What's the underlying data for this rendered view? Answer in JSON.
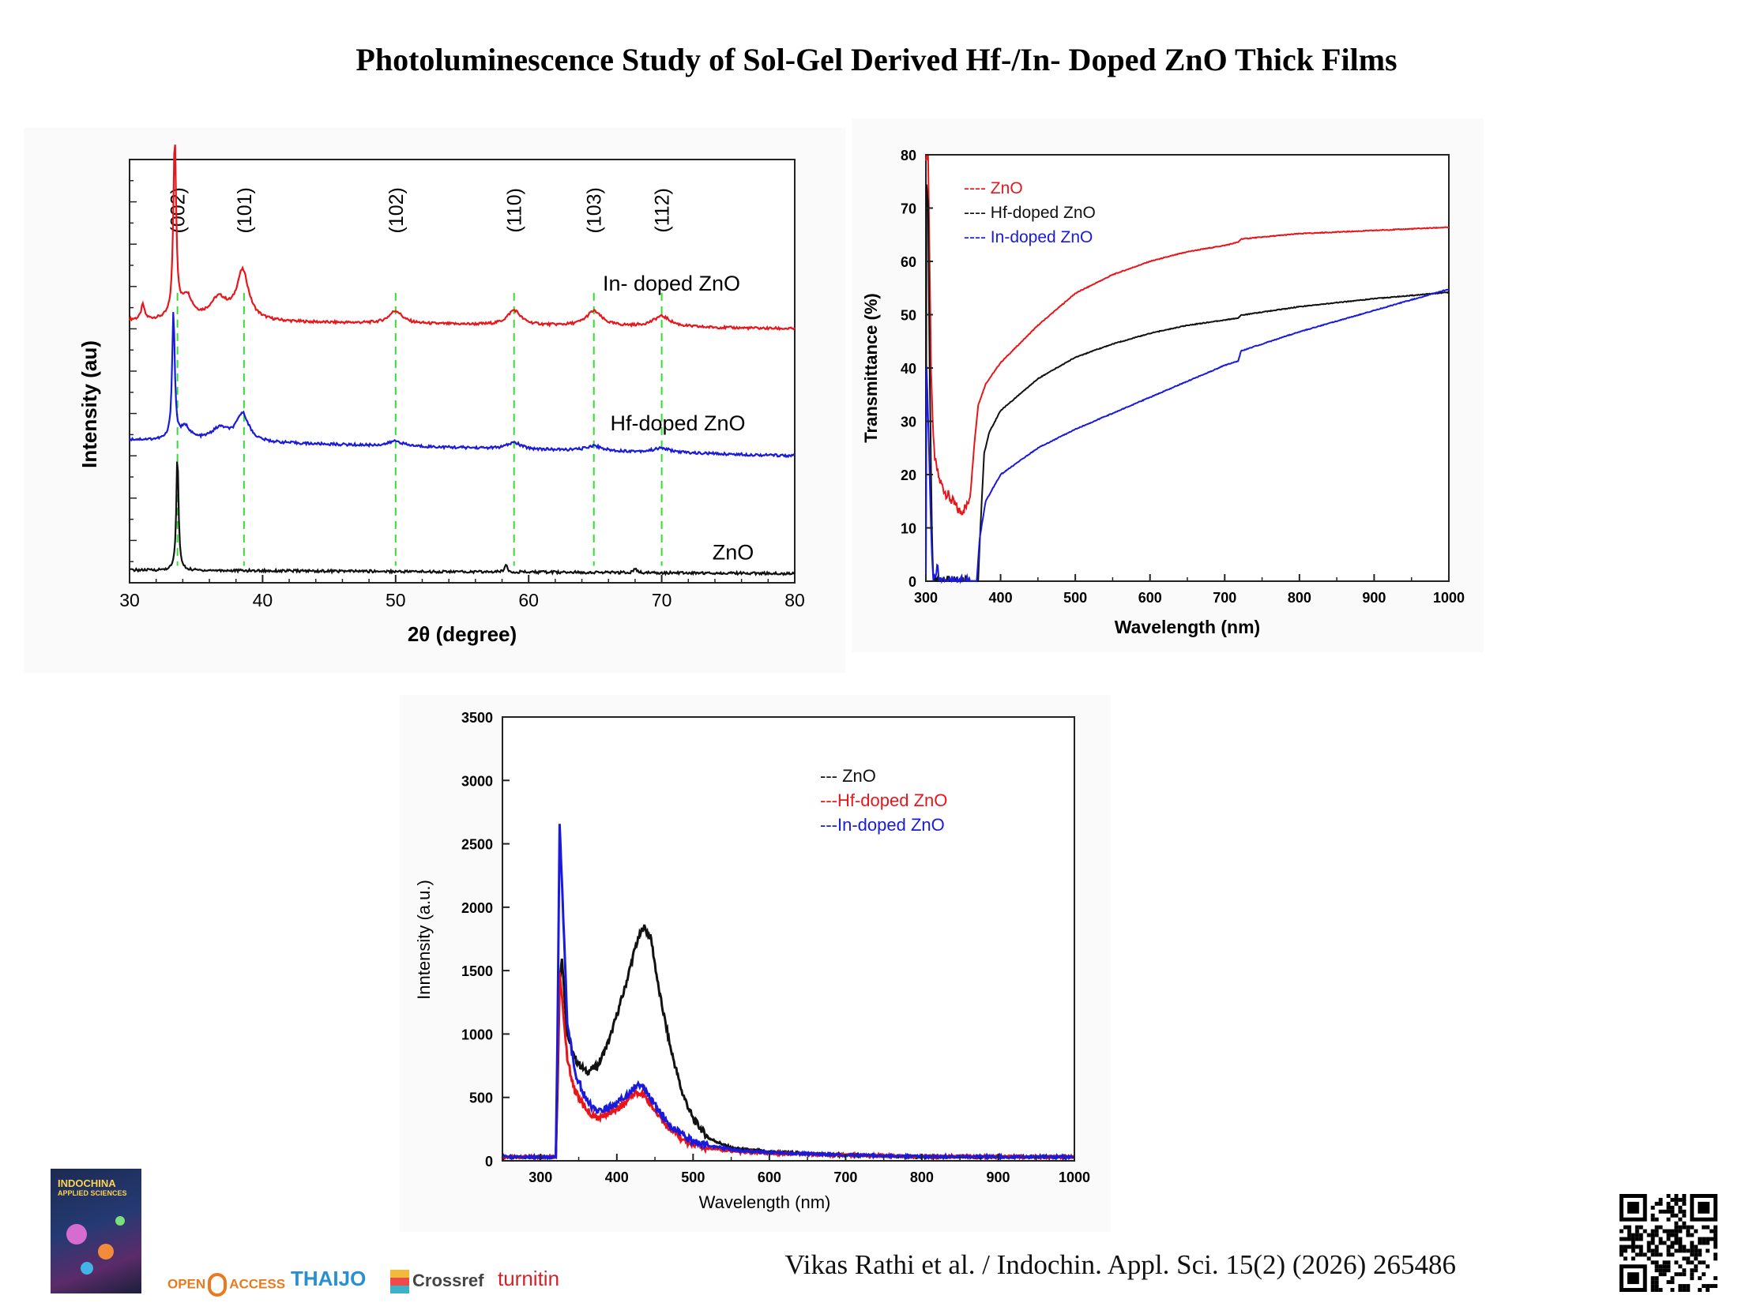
{
  "page": {
    "title": "Photoluminescence Study of Sol-Gel Derived Hf-/In- Doped ZnO Thick Films",
    "citation": "Vikas Rathi et al. / Indochin. Appl. Sci. 15(2) (2026) 265486",
    "cover": {
      "title": "INDOCHINA",
      "subtitle": "APPLIED SCIENCES"
    },
    "logos": {
      "open_left": "OPEN",
      "open_right": "ACCESS",
      "thaijo": "THAIJO",
      "crossref": "Crossref",
      "turnitin": "turnitin"
    }
  },
  "chart_data": [
    {
      "type": "line",
      "chart": "xrd",
      "xlabel": "2θ (degree)",
      "ylabel": "Intensity (au)",
      "xlim": [
        30,
        80
      ],
      "xticks": [
        30,
        40,
        50,
        60,
        70,
        80
      ],
      "y_ticks_shown": false,
      "peak_markers": [
        {
          "label": "(002)",
          "x": 33.6
        },
        {
          "label": "(101)",
          "x": 38.6
        },
        {
          "label": "(102)",
          "x": 50.0
        },
        {
          "label": "(110)",
          "x": 58.9
        },
        {
          "label": "(103)",
          "x": 64.9
        },
        {
          "label": "(112)",
          "x": 70.0
        }
      ],
      "peak_marker_color": "#33dd33",
      "series": [
        {
          "name": "In- doped ZnO",
          "color": "#e8161b",
          "baseline": 0.62,
          "baseline_end": 0.6,
          "peaks": [
            [
              31.0,
              0.035,
              0.15
            ],
            [
              33.4,
              0.42,
              0.13
            ],
            [
              34.3,
              0.055,
              0.5
            ],
            [
              36.7,
              0.05,
              0.8
            ],
            [
              38.5,
              0.115,
              0.55
            ],
            [
              50.0,
              0.03,
              0.6
            ],
            [
              58.9,
              0.035,
              0.6
            ],
            [
              64.9,
              0.035,
              0.7
            ],
            [
              70.0,
              0.025,
              0.8
            ]
          ]
        },
        {
          "name": "Hf-doped ZnO",
          "color": "#1a1adc",
          "baseline": 0.338,
          "baseline_end": 0.3,
          "peaks": [
            [
              33.3,
              0.3,
              0.12
            ],
            [
              34.2,
              0.03,
              0.45
            ],
            [
              36.8,
              0.03,
              0.8
            ],
            [
              38.5,
              0.065,
              0.55
            ],
            [
              50.0,
              0.012,
              0.6
            ],
            [
              58.9,
              0.015,
              0.6
            ],
            [
              64.9,
              0.012,
              0.7
            ],
            [
              70.0,
              0.01,
              0.8
            ]
          ]
        },
        {
          "name": "ZnO",
          "color": "#111111",
          "baseline": 0.03,
          "baseline_end": 0.022,
          "peaks": [
            [
              33.6,
              0.275,
              0.1
            ],
            [
              58.3,
              0.018,
              0.12
            ],
            [
              68.0,
              0.01,
              0.12
            ]
          ]
        }
      ]
    },
    {
      "type": "line",
      "chart": "transmittance",
      "xlabel": "Wavelength (nm)",
      "ylabel": "Transmittance (%)",
      "xlim": [
        300,
        1000
      ],
      "ylim": [
        0,
        80
      ],
      "xticks": [
        300,
        400,
        500,
        600,
        700,
        800,
        900,
        1000
      ],
      "yticks": [
        0,
        10,
        20,
        30,
        40,
        50,
        60,
        70,
        80
      ],
      "legend_position": "top-left",
      "series": [
        {
          "name": "ZnO",
          "legend_label": "---- ZnO",
          "color": "#e8161b",
          "points": [
            [
              300,
              80
            ],
            [
              303,
              80
            ],
            [
              305,
              60
            ],
            [
              307,
              40
            ],
            [
              310,
              26
            ],
            [
              313,
              22
            ],
            [
              318,
              19
            ],
            [
              325,
              17
            ],
            [
              335,
              15
            ],
            [
              345,
              13
            ],
            [
              355,
              14
            ],
            [
              360,
              17
            ],
            [
              365,
              26
            ],
            [
              370,
              33
            ],
            [
              380,
              37
            ],
            [
              400,
              41
            ],
            [
              450,
              48
            ],
            [
              500,
              54
            ],
            [
              550,
              57.5
            ],
            [
              600,
              60
            ],
            [
              650,
              61.8
            ],
            [
              700,
              63
            ],
            [
              718,
              63.6
            ],
            [
              722,
              64.2
            ],
            [
              800,
              65.2
            ],
            [
              900,
              65.8
            ],
            [
              1000,
              66.4
            ]
          ]
        },
        {
          "name": "Hf-doped ZnO",
          "legend_label": "---- Hf-doped ZnO",
          "color": "#111111",
          "points": [
            [
              300,
              0
            ],
            [
              301,
              75
            ],
            [
              303,
              70
            ],
            [
              305,
              40
            ],
            [
              308,
              10
            ],
            [
              310,
              0
            ],
            [
              370,
              0
            ],
            [
              373,
              10
            ],
            [
              378,
              24
            ],
            [
              385,
              28
            ],
            [
              400,
              32
            ],
            [
              450,
              38
            ],
            [
              500,
              42
            ],
            [
              550,
              44.5
            ],
            [
              600,
              46.5
            ],
            [
              650,
              48
            ],
            [
              700,
              49
            ],
            [
              718,
              49.4
            ],
            [
              722,
              49.9
            ],
            [
              800,
              51.5
            ],
            [
              900,
              53
            ],
            [
              1000,
              54.2
            ]
          ]
        },
        {
          "name": "In-doped ZnO",
          "legend_label": "---- In-doped ZnO",
          "color": "#1a1adc",
          "points": [
            [
              300,
              0
            ],
            [
              301,
              40
            ],
            [
              303,
              30
            ],
            [
              306,
              14
            ],
            [
              308,
              5
            ],
            [
              310,
              0
            ],
            [
              315,
              3
            ],
            [
              318,
              0
            ],
            [
              368,
              0
            ],
            [
              372,
              8
            ],
            [
              380,
              15
            ],
            [
              400,
              20
            ],
            [
              450,
              25
            ],
            [
              500,
              28.5
            ],
            [
              550,
              31.5
            ],
            [
              600,
              34.5
            ],
            [
              650,
              37.5
            ],
            [
              700,
              40.5
            ],
            [
              718,
              41.3
            ],
            [
              722,
              43.2
            ],
            [
              800,
              46.8
            ],
            [
              900,
              50.8
            ],
            [
              1000,
              54.8
            ]
          ]
        }
      ]
    },
    {
      "type": "line",
      "chart": "photoluminescence",
      "xlabel": "Wavelength (nm)",
      "ylabel": "Inntensity (a.u.)",
      "xlim": [
        250,
        1000
      ],
      "ylim": [
        0,
        3500
      ],
      "xticks": [
        300,
        400,
        500,
        600,
        700,
        800,
        900,
        1000
      ],
      "yticks": [
        0,
        500,
        1000,
        1500,
        2000,
        2500,
        3000,
        3500
      ],
      "legend_position": "top-right",
      "series": [
        {
          "name": "ZnO",
          "legend_label": "--- ZnO",
          "color": "#111111",
          "points": [
            [
              250,
              30
            ],
            [
              320,
              30
            ],
            [
              322,
              500
            ],
            [
              325,
              1400
            ],
            [
              328,
              1600
            ],
            [
              335,
              1000
            ],
            [
              345,
              800
            ],
            [
              360,
              700
            ],
            [
              375,
              750
            ],
            [
              390,
              950
            ],
            [
              410,
              1350
            ],
            [
              425,
              1700
            ],
            [
              435,
              1850
            ],
            [
              445,
              1750
            ],
            [
              455,
              1350
            ],
            [
              470,
              900
            ],
            [
              485,
              550
            ],
            [
              500,
              330
            ],
            [
              520,
              180
            ],
            [
              550,
              100
            ],
            [
              600,
              70
            ],
            [
              700,
              45
            ],
            [
              800,
              30
            ],
            [
              1000,
              30
            ]
          ]
        },
        {
          "name": "Hf-doped ZnO",
          "legend_label": "---Hf-doped ZnO",
          "color": "#e8161b",
          "points": [
            [
              250,
              30
            ],
            [
              320,
              30
            ],
            [
              322,
              600
            ],
            [
              325,
              1480
            ],
            [
              328,
              1300
            ],
            [
              335,
              800
            ],
            [
              345,
              550
            ],
            [
              360,
              400
            ],
            [
              375,
              330
            ],
            [
              390,
              380
            ],
            [
              410,
              450
            ],
            [
              425,
              540
            ],
            [
              435,
              520
            ],
            [
              450,
              400
            ],
            [
              470,
              240
            ],
            [
              490,
              150
            ],
            [
              520,
              100
            ],
            [
              560,
              70
            ],
            [
              600,
              60
            ],
            [
              700,
              45
            ],
            [
              800,
              35
            ],
            [
              1000,
              30
            ]
          ]
        },
        {
          "name": "In-doped ZnO",
          "legend_label": "---In-doped ZnO",
          "color": "#1a1adc",
          "points": [
            [
              250,
              30
            ],
            [
              320,
              30
            ],
            [
              322,
              900
            ],
            [
              325,
              2650
            ],
            [
              328,
              2200
            ],
            [
              335,
              1100
            ],
            [
              345,
              700
            ],
            [
              360,
              480
            ],
            [
              375,
              380
            ],
            [
              390,
              420
            ],
            [
              410,
              500
            ],
            [
              425,
              590
            ],
            [
              435,
              580
            ],
            [
              450,
              440
            ],
            [
              470,
              280
            ],
            [
              490,
              180
            ],
            [
              520,
              120
            ],
            [
              560,
              80
            ],
            [
              600,
              65
            ],
            [
              700,
              45
            ],
            [
              800,
              35
            ],
            [
              1000,
              30
            ]
          ]
        }
      ]
    }
  ]
}
